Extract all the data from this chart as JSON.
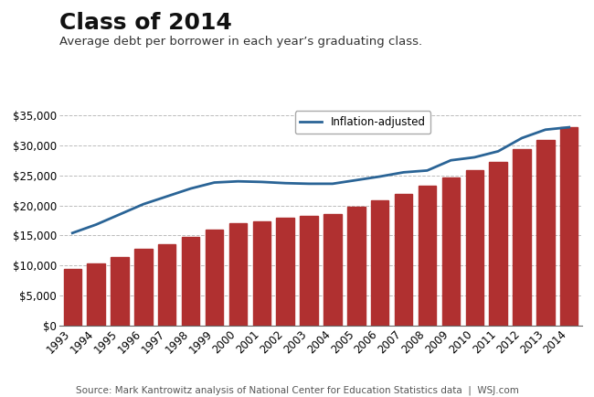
{
  "title": "Class of 2014",
  "subtitle": "Average debt per borrower in each year’s graduating class.",
  "source": "Source: Mark Kantrowitz analysis of National Center for Education Statistics data  |  WSJ.com",
  "years": [
    1993,
    1994,
    1995,
    1996,
    1997,
    1998,
    1999,
    2000,
    2001,
    2002,
    2003,
    2004,
    2005,
    2006,
    2007,
    2008,
    2009,
    2010,
    2011,
    2012,
    2013,
    2014
  ],
  "bar_values": [
    9400,
    10400,
    11400,
    12800,
    13500,
    14800,
    16000,
    17100,
    17400,
    17900,
    18200,
    18500,
    19700,
    20900,
    21900,
    23200,
    24700,
    25900,
    27300,
    29300,
    30900,
    33000
  ],
  "line_values": [
    15400,
    16800,
    18500,
    20200,
    21500,
    22800,
    23800,
    24000,
    23900,
    23700,
    23600,
    23600,
    24200,
    24800,
    25500,
    25800,
    27500,
    28000,
    29000,
    31200,
    32600,
    33000
  ],
  "bar_color": "#b03030",
  "line_color": "#2a6496",
  "background_color": "#ffffff",
  "grid_color": "#aaaaaa",
  "ylim": [
    0,
    37000
  ],
  "yticks": [
    0,
    5000,
    10000,
    15000,
    20000,
    25000,
    30000,
    35000
  ],
  "legend_label": "Inflation-adjusted",
  "title_fontsize": 18,
  "subtitle_fontsize": 9.5,
  "tick_fontsize": 8.5,
  "source_fontsize": 7.5
}
